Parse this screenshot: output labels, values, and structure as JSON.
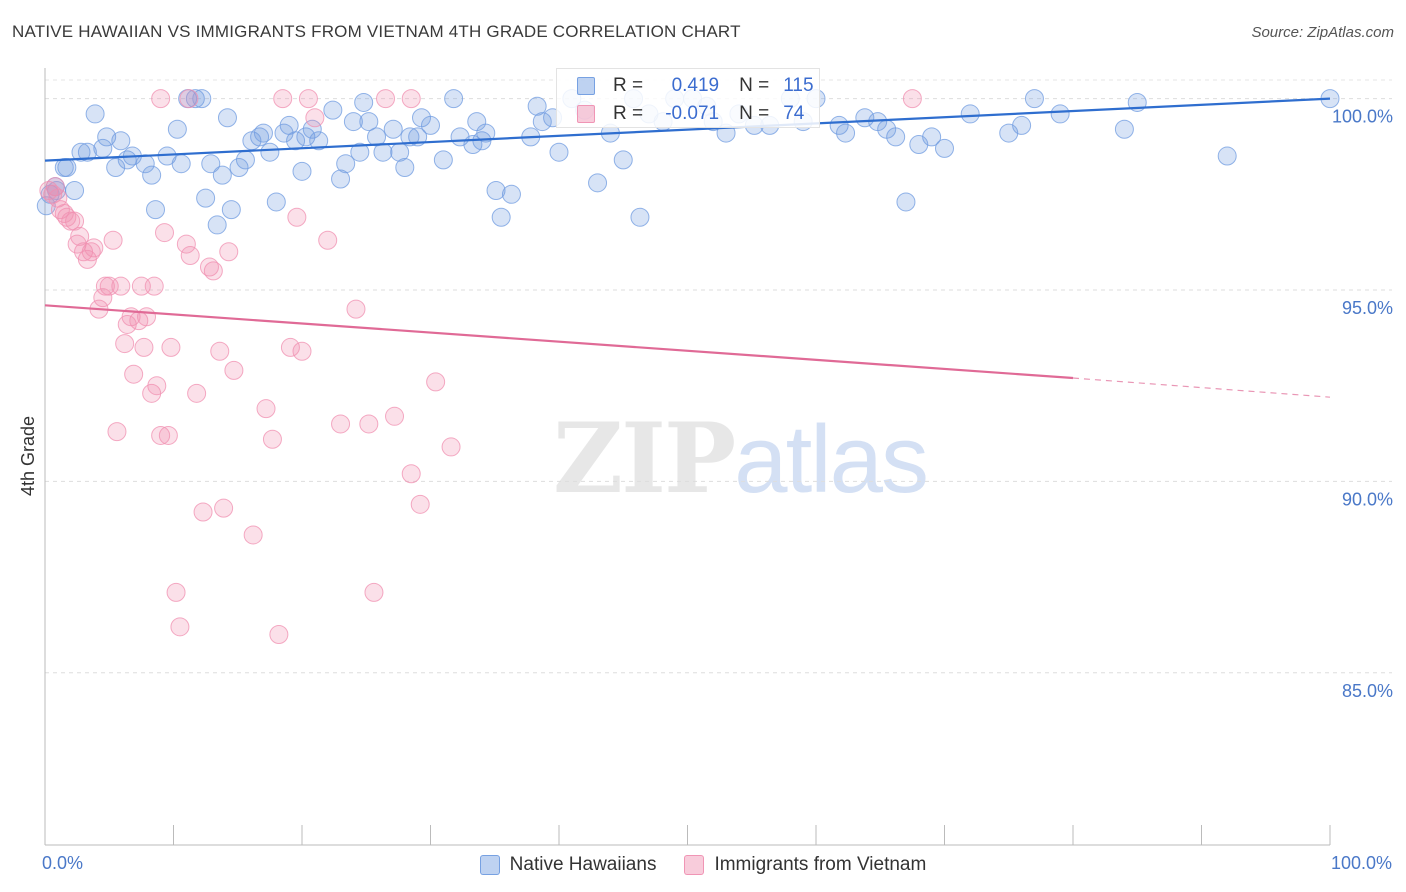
{
  "header": {
    "title": "NATIVE HAWAIIAN VS IMMIGRANTS FROM VIETNAM 4TH GRADE CORRELATION CHART",
    "source": "Source: ZipAtlas.com"
  },
  "watermark": {
    "zip": "ZIP",
    "atlas": "atlas"
  },
  "stats": {
    "rows": [
      {
        "r_label": "R =",
        "r_value": "0.419",
        "n_label": "N =",
        "n_value": "115",
        "color": "#6f9be0"
      },
      {
        "r_label": "R =",
        "r_value": "-0.071",
        "n_label": "N =",
        "n_value": "74",
        "color": "#f08fb0"
      }
    ]
  },
  "legend": {
    "items": [
      {
        "label": "Native Hawaiians",
        "color": "#6f9be0"
      },
      {
        "label": "Immigrants from Vietnam",
        "color": "#f08fb0"
      }
    ]
  },
  "chart_data": {
    "type": "scatter",
    "title": "NATIVE HAWAIIAN VS IMMIGRANTS FROM VIETNAM 4TH GRADE CORRELATION CHART",
    "xlabel": "",
    "ylabel": "4th Grade",
    "xlim": [
      0,
      100
    ],
    "ylim": [
      80.5,
      100.8
    ],
    "x_tick_labels": [
      {
        "value": 0,
        "label": "0.0%"
      },
      {
        "value": 100,
        "label": "100.0%"
      }
    ],
    "y_ticks": [
      {
        "value": 100,
        "label": "100.0%"
      },
      {
        "value": 95,
        "label": "95.0%"
      },
      {
        "value": 90,
        "label": "90.0%"
      },
      {
        "value": 85,
        "label": "85.0%"
      }
    ],
    "grid": true,
    "legend_position": "bottom",
    "series": [
      {
        "name": "Native Hawaiians",
        "color": "#6f9be0",
        "trend": {
          "x0": 0,
          "y0": 98.38,
          "x1": 100,
          "y1": 100.0
        },
        "points": [
          [
            0.1,
            97.2
          ],
          [
            0.4,
            97.5
          ],
          [
            0.8,
            97.7
          ],
          [
            1.5,
            98.2
          ],
          [
            1.7,
            98.2
          ],
          [
            2.3,
            97.6
          ],
          [
            2.8,
            98.6
          ],
          [
            3.3,
            98.6
          ],
          [
            3.9,
            99.6
          ],
          [
            4.5,
            98.7
          ],
          [
            4.8,
            99.0
          ],
          [
            5.5,
            98.2
          ],
          [
            5.9,
            98.9
          ],
          [
            6.4,
            98.4
          ],
          [
            6.8,
            98.5
          ],
          [
            7.8,
            98.3
          ],
          [
            8.3,
            98.0
          ],
          [
            8.6,
            97.1
          ],
          [
            9.5,
            98.5
          ],
          [
            10.3,
            99.2
          ],
          [
            10.6,
            98.3
          ],
          [
            11.1,
            100.0
          ],
          [
            11.7,
            100.0
          ],
          [
            12.2,
            100.0
          ],
          [
            12.5,
            97.4
          ],
          [
            12.9,
            98.3
          ],
          [
            13.4,
            96.7
          ],
          [
            13.8,
            98.0
          ],
          [
            14.2,
            99.5
          ],
          [
            14.5,
            97.1
          ],
          [
            15.1,
            98.2
          ],
          [
            15.6,
            98.4
          ],
          [
            16.1,
            98.9
          ],
          [
            16.7,
            99.0
          ],
          [
            17.0,
            99.1
          ],
          [
            17.5,
            98.6
          ],
          [
            18.0,
            97.3
          ],
          [
            18.6,
            99.1
          ],
          [
            19.0,
            99.3
          ],
          [
            19.5,
            98.9
          ],
          [
            20.0,
            98.1
          ],
          [
            20.3,
            99.0
          ],
          [
            20.8,
            99.2
          ],
          [
            21.3,
            98.9
          ],
          [
            22.4,
            99.7
          ],
          [
            23.0,
            97.9
          ],
          [
            23.4,
            98.3
          ],
          [
            24.0,
            99.4
          ],
          [
            24.5,
            98.6
          ],
          [
            24.8,
            99.9
          ],
          [
            25.2,
            99.4
          ],
          [
            25.8,
            99.0
          ],
          [
            26.3,
            98.6
          ],
          [
            27.1,
            99.2
          ],
          [
            27.6,
            98.6
          ],
          [
            28.0,
            98.2
          ],
          [
            28.4,
            99.0
          ],
          [
            29.0,
            99.0
          ],
          [
            29.3,
            99.5
          ],
          [
            30.0,
            99.3
          ],
          [
            31.0,
            98.4
          ],
          [
            31.8,
            100.0
          ],
          [
            32.3,
            99.0
          ],
          [
            33.3,
            98.8
          ],
          [
            33.6,
            99.4
          ],
          [
            34.0,
            98.9
          ],
          [
            34.3,
            99.1
          ],
          [
            35.1,
            97.6
          ],
          [
            35.5,
            96.9
          ],
          [
            36.3,
            97.5
          ],
          [
            37.8,
            99.0
          ],
          [
            38.3,
            99.8
          ],
          [
            38.7,
            99.4
          ],
          [
            39.5,
            99.5
          ],
          [
            40.0,
            98.6
          ],
          [
            41.0,
            100.0
          ],
          [
            42.0,
            99.7
          ],
          [
            43.0,
            97.8
          ],
          [
            44.0,
            99.1
          ],
          [
            45.0,
            98.4
          ],
          [
            45.8,
            100.0
          ],
          [
            46.3,
            96.9
          ],
          [
            47.0,
            99.6
          ],
          [
            48.1,
            99.4
          ],
          [
            49.0,
            100.0
          ],
          [
            50.4,
            100.0
          ],
          [
            51.5,
            99.8
          ],
          [
            52.0,
            99.4
          ],
          [
            53.0,
            99.1
          ],
          [
            54.0,
            99.6
          ],
          [
            55.2,
            99.3
          ],
          [
            56.4,
            99.3
          ],
          [
            58.0,
            100.0
          ],
          [
            59.0,
            99.4
          ],
          [
            60.0,
            100.0
          ],
          [
            61.8,
            99.3
          ],
          [
            62.3,
            99.1
          ],
          [
            63.8,
            99.5
          ],
          [
            64.8,
            99.4
          ],
          [
            65.5,
            99.2
          ],
          [
            66.2,
            99.0
          ],
          [
            67.0,
            97.3
          ],
          [
            68.0,
            98.8
          ],
          [
            69.0,
            99.0
          ],
          [
            70.0,
            98.7
          ],
          [
            72.0,
            99.6
          ],
          [
            75.0,
            99.1
          ],
          [
            76.0,
            99.3
          ],
          [
            77.0,
            100.0
          ],
          [
            79.0,
            99.6
          ],
          [
            84.0,
            99.2
          ],
          [
            85.0,
            99.9
          ],
          [
            92.0,
            98.5
          ],
          [
            100.0,
            100.0
          ],
          [
            0.9,
            97.6
          ]
        ]
      },
      {
        "name": "Immigrants from Vietnam",
        "color": "#f08fb0",
        "trend": {
          "x0": 0,
          "y0": 94.6,
          "x1": 80,
          "y1": 92.7,
          "dash_to_x": 100,
          "dash_to_y": 92.2
        },
        "points": [
          [
            0.3,
            97.6
          ],
          [
            0.6,
            97.5
          ],
          [
            0.8,
            97.7
          ],
          [
            1.0,
            97.4
          ],
          [
            1.2,
            97.1
          ],
          [
            1.5,
            97.0
          ],
          [
            1.7,
            96.9
          ],
          [
            2.0,
            96.8
          ],
          [
            2.3,
            96.8
          ],
          [
            2.5,
            96.2
          ],
          [
            2.7,
            96.4
          ],
          [
            3.0,
            96.0
          ],
          [
            3.3,
            95.8
          ],
          [
            3.6,
            96.0
          ],
          [
            3.8,
            96.1
          ],
          [
            4.2,
            94.5
          ],
          [
            4.5,
            94.8
          ],
          [
            4.7,
            95.1
          ],
          [
            5.0,
            95.1
          ],
          [
            5.3,
            96.3
          ],
          [
            5.6,
            91.3
          ],
          [
            5.9,
            95.1
          ],
          [
            6.2,
            93.6
          ],
          [
            6.4,
            94.1
          ],
          [
            6.7,
            94.3
          ],
          [
            6.9,
            92.8
          ],
          [
            7.3,
            94.2
          ],
          [
            7.5,
            95.1
          ],
          [
            7.7,
            93.5
          ],
          [
            7.9,
            94.3
          ],
          [
            8.3,
            92.3
          ],
          [
            8.5,
            95.1
          ],
          [
            8.7,
            92.5
          ],
          [
            9.0,
            91.2
          ],
          [
            9.3,
            96.5
          ],
          [
            9.6,
            91.2
          ],
          [
            9.8,
            93.5
          ],
          [
            10.2,
            87.1
          ],
          [
            10.5,
            86.2
          ],
          [
            11.0,
            96.2
          ],
          [
            11.3,
            95.9
          ],
          [
            11.8,
            92.3
          ],
          [
            12.3,
            89.2
          ],
          [
            12.8,
            95.6
          ],
          [
            13.1,
            95.5
          ],
          [
            13.6,
            93.4
          ],
          [
            13.9,
            89.3
          ],
          [
            14.3,
            96.0
          ],
          [
            14.7,
            92.9
          ],
          [
            16.2,
            88.6
          ],
          [
            17.2,
            91.9
          ],
          [
            17.7,
            91.1
          ],
          [
            18.2,
            86.0
          ],
          [
            19.1,
            93.5
          ],
          [
            19.6,
            96.9
          ],
          [
            20.0,
            93.4
          ],
          [
            21.0,
            99.5
          ],
          [
            22.0,
            96.3
          ],
          [
            23.0,
            91.5
          ],
          [
            24.2,
            94.5
          ],
          [
            25.2,
            91.5
          ],
          [
            25.6,
            87.1
          ],
          [
            27.2,
            91.7
          ],
          [
            28.5,
            90.2
          ],
          [
            29.2,
            89.4
          ],
          [
            30.4,
            92.6
          ],
          [
            31.6,
            90.9
          ],
          [
            9.0,
            100.0
          ],
          [
            11.2,
            100.0
          ],
          [
            18.5,
            100.0
          ],
          [
            20.5,
            100.0
          ],
          [
            26.5,
            100.0
          ],
          [
            28.5,
            100.0
          ],
          [
            67.5,
            100.0
          ]
        ]
      }
    ]
  }
}
